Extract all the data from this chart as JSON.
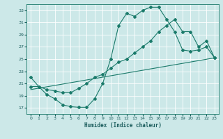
{
  "title": "",
  "xlabel": "Humidex (Indice chaleur)",
  "bg_color": "#cce8e8",
  "grid_color": "#b8d8d8",
  "line_color": "#1a7a6a",
  "xlim": [
    -0.5,
    23.5
  ],
  "ylim": [
    16,
    34
  ],
  "yticks": [
    17,
    19,
    21,
    23,
    25,
    27,
    29,
    31,
    33
  ],
  "xticks": [
    0,
    1,
    2,
    3,
    4,
    5,
    6,
    7,
    8,
    9,
    10,
    11,
    12,
    13,
    14,
    15,
    16,
    17,
    18,
    19,
    20,
    21,
    22,
    23
  ],
  "line1_x": [
    0,
    1,
    2,
    3,
    4,
    5,
    6,
    7,
    8,
    9,
    10,
    11,
    12,
    13,
    14,
    15,
    16,
    17,
    18,
    19,
    20,
    21,
    22,
    23
  ],
  "line1_y": [
    22.0,
    20.5,
    19.2,
    18.5,
    17.5,
    17.2,
    17.1,
    17.1,
    18.5,
    21.0,
    25.0,
    30.5,
    32.5,
    32.0,
    33.0,
    33.5,
    33.5,
    31.5,
    29.5,
    26.5,
    26.3,
    26.5,
    27.0,
    25.2
  ],
  "line2_x": [
    0,
    1,
    2,
    3,
    4,
    5,
    6,
    7,
    8,
    9,
    10,
    11,
    12,
    13,
    14,
    15,
    16,
    17,
    18,
    19,
    20,
    21,
    22,
    23
  ],
  "line2_y": [
    20.5,
    20.5,
    20.0,
    19.8,
    19.5,
    19.5,
    20.2,
    21.0,
    22.0,
    22.5,
    23.5,
    24.5,
    25.0,
    26.0,
    27.0,
    28.0,
    29.5,
    30.5,
    31.5,
    29.5,
    29.5,
    27.0,
    28.0,
    25.2
  ],
  "line3_x": [
    0,
    23
  ],
  "line3_y": [
    20.0,
    25.2
  ]
}
